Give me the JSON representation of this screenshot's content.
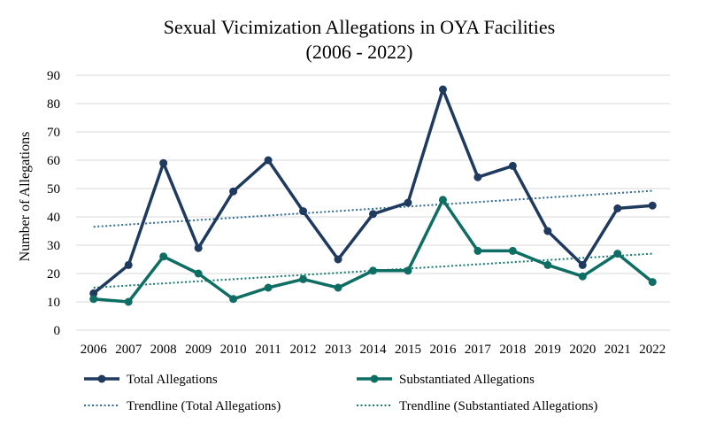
{
  "chart_data": {
    "type": "line",
    "title_line1": "Sexual Vicimization Allegations in OYA Facilities",
    "title_line2": "(2006 - 2022)",
    "xlabel": "",
    "ylabel": "Number of Allegations",
    "ylim": [
      0,
      90
    ],
    "yticks": [
      0,
      10,
      20,
      30,
      40,
      50,
      60,
      70,
      80,
      90
    ],
    "grid": true,
    "legend_position": "bottom",
    "categories": [
      "2006",
      "2007",
      "2008",
      "2009",
      "2010",
      "2011",
      "2012",
      "2013",
      "2014",
      "2015",
      "2016",
      "2017",
      "2018",
      "2019",
      "2020",
      "2021",
      "2022"
    ],
    "series": [
      {
        "name": "Total Allegations",
        "color": "#1f3a5f",
        "values": [
          13,
          23,
          59,
          29,
          49,
          60,
          42,
          25,
          41,
          45,
          85,
          54,
          58,
          35,
          23,
          43,
          44
        ]
      },
      {
        "name": "Substantiated Allegations",
        "color": "#0f6e64",
        "values": [
          11,
          10,
          26,
          20,
          11,
          15,
          18,
          15,
          21,
          21,
          46,
          28,
          28,
          23,
          19,
          27,
          17
        ]
      }
    ],
    "trendlines": [
      {
        "name": "Trendline (Total Allegations)",
        "color": "#2e6b96",
        "start": 36.5,
        "end": 49.2
      },
      {
        "name": "Trendline (Substantiated Allegations)",
        "color": "#157a6e",
        "start": 15.0,
        "end": 27.0
      }
    ]
  }
}
